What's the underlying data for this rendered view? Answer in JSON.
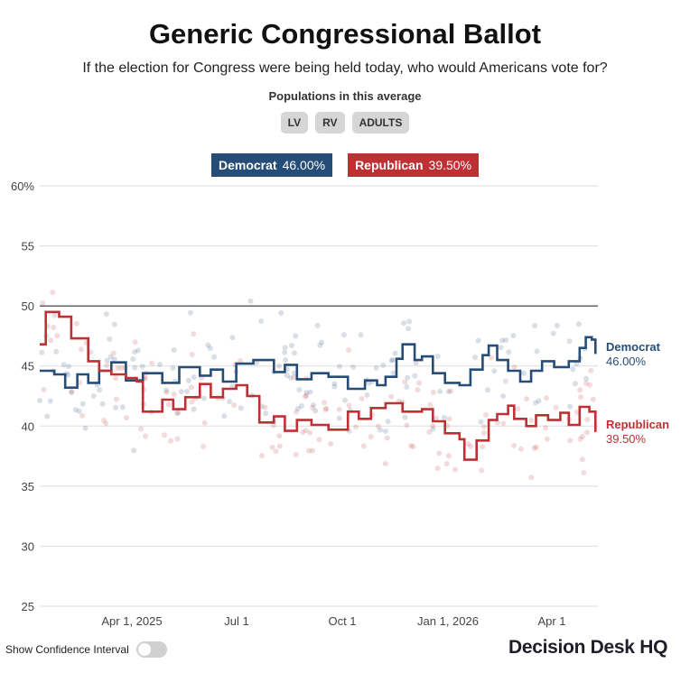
{
  "title": "Generic Congressional Ballot",
  "subtitle": "If the election for Congress were being held today, who would Americans vote for?",
  "populations_label": "Populations in this average",
  "populations": [
    "LV",
    "RV",
    "ADULTS"
  ],
  "legend": {
    "dem": {
      "name": "Democrat",
      "value": "46.00%"
    },
    "rep": {
      "name": "Republican",
      "value": "39.50%"
    }
  },
  "end_labels": {
    "dem": {
      "name": "Democrat",
      "value": "46.00%"
    },
    "rep": {
      "name": "Republican",
      "value": "39.50%"
    }
  },
  "footer": {
    "confidence_label": "Show Confidence Interval",
    "brand": "Decision Desk HQ"
  },
  "colors": {
    "dem": "#264d78",
    "rep": "#bf3035"
  },
  "chart_data": {
    "type": "line",
    "x_ticks": [
      "Apr 1, 2025",
      "Jul 1",
      "Oct 1",
      "Jan 1, 2026",
      "Apr 1"
    ],
    "y_ticks": [
      "60%",
      "55",
      "50",
      "45",
      "40",
      "35",
      "30",
      "25"
    ],
    "ylim": [
      25,
      60
    ],
    "xlim": [
      "2025-01-20",
      "2026-04-25"
    ],
    "reference_line": 50,
    "grid": true,
    "series": [
      {
        "name": "Democrat",
        "color": "#264d78",
        "points": [
          [
            "2025-01-20",
            44.6
          ],
          [
            "2025-02-01",
            44.3
          ],
          [
            "2025-02-10",
            43.2
          ],
          [
            "2025-02-20",
            44.3
          ],
          [
            "2025-03-01",
            43.6
          ],
          [
            "2025-03-10",
            44.6
          ],
          [
            "2025-03-20",
            45.3
          ],
          [
            "2025-04-01",
            43.8
          ],
          [
            "2025-04-15",
            44.4
          ],
          [
            "2025-05-01",
            43.6
          ],
          [
            "2025-05-15",
            44.9
          ],
          [
            "2025-06-01",
            44.2
          ],
          [
            "2025-06-10",
            44.7
          ],
          [
            "2025-06-20",
            43.7
          ],
          [
            "2025-07-01",
            45.2
          ],
          [
            "2025-07-15",
            45.5
          ],
          [
            "2025-08-01",
            44.5
          ],
          [
            "2025-08-10",
            45.1
          ],
          [
            "2025-08-20",
            43.9
          ],
          [
            "2025-09-01",
            44.4
          ],
          [
            "2025-09-15",
            44.1
          ],
          [
            "2025-10-01",
            43.1
          ],
          [
            "2025-10-15",
            43.8
          ],
          [
            "2025-10-25",
            43.4
          ],
          [
            "2025-11-01",
            44.1
          ],
          [
            "2025-11-10",
            45.6
          ],
          [
            "2025-11-15",
            46.8
          ],
          [
            "2025-11-25",
            45.5
          ],
          [
            "2025-12-01",
            45.8
          ],
          [
            "2025-12-10",
            44.4
          ],
          [
            "2025-12-20",
            43.6
          ],
          [
            "2026-01-01",
            43.4
          ],
          [
            "2026-01-10",
            44.7
          ],
          [
            "2026-01-20",
            45.9
          ],
          [
            "2026-01-25",
            46.7
          ],
          [
            "2026-02-01",
            45.5
          ],
          [
            "2026-02-10",
            44.6
          ],
          [
            "2026-02-20",
            43.7
          ],
          [
            "2026-03-01",
            44.6
          ],
          [
            "2026-03-10",
            45.4
          ],
          [
            "2026-03-20",
            44.9
          ],
          [
            "2026-04-01",
            45.4
          ],
          [
            "2026-04-10",
            46.5
          ],
          [
            "2026-04-15",
            47.4
          ],
          [
            "2026-04-20",
            47.2
          ],
          [
            "2026-04-23",
            46.0
          ]
        ]
      },
      {
        "name": "Republican",
        "color": "#bf3035",
        "points": [
          [
            "2025-01-20",
            46.8
          ],
          [
            "2025-01-25",
            49.5
          ],
          [
            "2025-02-05",
            49.1
          ],
          [
            "2025-02-15",
            47.3
          ],
          [
            "2025-03-01",
            45.4
          ],
          [
            "2025-03-10",
            44.6
          ],
          [
            "2025-03-20",
            44.3
          ],
          [
            "2025-04-01",
            44.0
          ],
          [
            "2025-04-10",
            43.7
          ],
          [
            "2025-04-15",
            41.2
          ],
          [
            "2025-05-01",
            42.2
          ],
          [
            "2025-05-10",
            41.4
          ],
          [
            "2025-05-20",
            42.4
          ],
          [
            "2025-06-01",
            43.5
          ],
          [
            "2025-06-10",
            42.4
          ],
          [
            "2025-06-20",
            43.1
          ],
          [
            "2025-07-01",
            43.4
          ],
          [
            "2025-07-10",
            42.5
          ],
          [
            "2025-07-20",
            40.3
          ],
          [
            "2025-08-01",
            40.8
          ],
          [
            "2025-08-10",
            39.6
          ],
          [
            "2025-08-20",
            40.5
          ],
          [
            "2025-09-01",
            40.1
          ],
          [
            "2025-09-15",
            39.7
          ],
          [
            "2025-10-01",
            41.2
          ],
          [
            "2025-10-10",
            40.6
          ],
          [
            "2025-10-20",
            41.5
          ],
          [
            "2025-11-01",
            41.9
          ],
          [
            "2025-11-15",
            41.2
          ],
          [
            "2025-12-01",
            41.4
          ],
          [
            "2025-12-10",
            40.4
          ],
          [
            "2025-12-20",
            39.4
          ],
          [
            "2026-01-01",
            38.9
          ],
          [
            "2026-01-05",
            37.2
          ],
          [
            "2026-01-15",
            38.8
          ],
          [
            "2026-01-25",
            40.5
          ],
          [
            "2026-02-01",
            41.0
          ],
          [
            "2026-02-10",
            41.7
          ],
          [
            "2026-02-15",
            40.6
          ],
          [
            "2026-02-25",
            40.0
          ],
          [
            "2026-03-05",
            40.9
          ],
          [
            "2026-03-15",
            40.5
          ],
          [
            "2026-03-25",
            41.1
          ],
          [
            "2026-04-01",
            40.1
          ],
          [
            "2026-04-10",
            41.6
          ],
          [
            "2026-04-18",
            41.2
          ],
          [
            "2026-04-23",
            39.5
          ]
        ]
      }
    ]
  }
}
